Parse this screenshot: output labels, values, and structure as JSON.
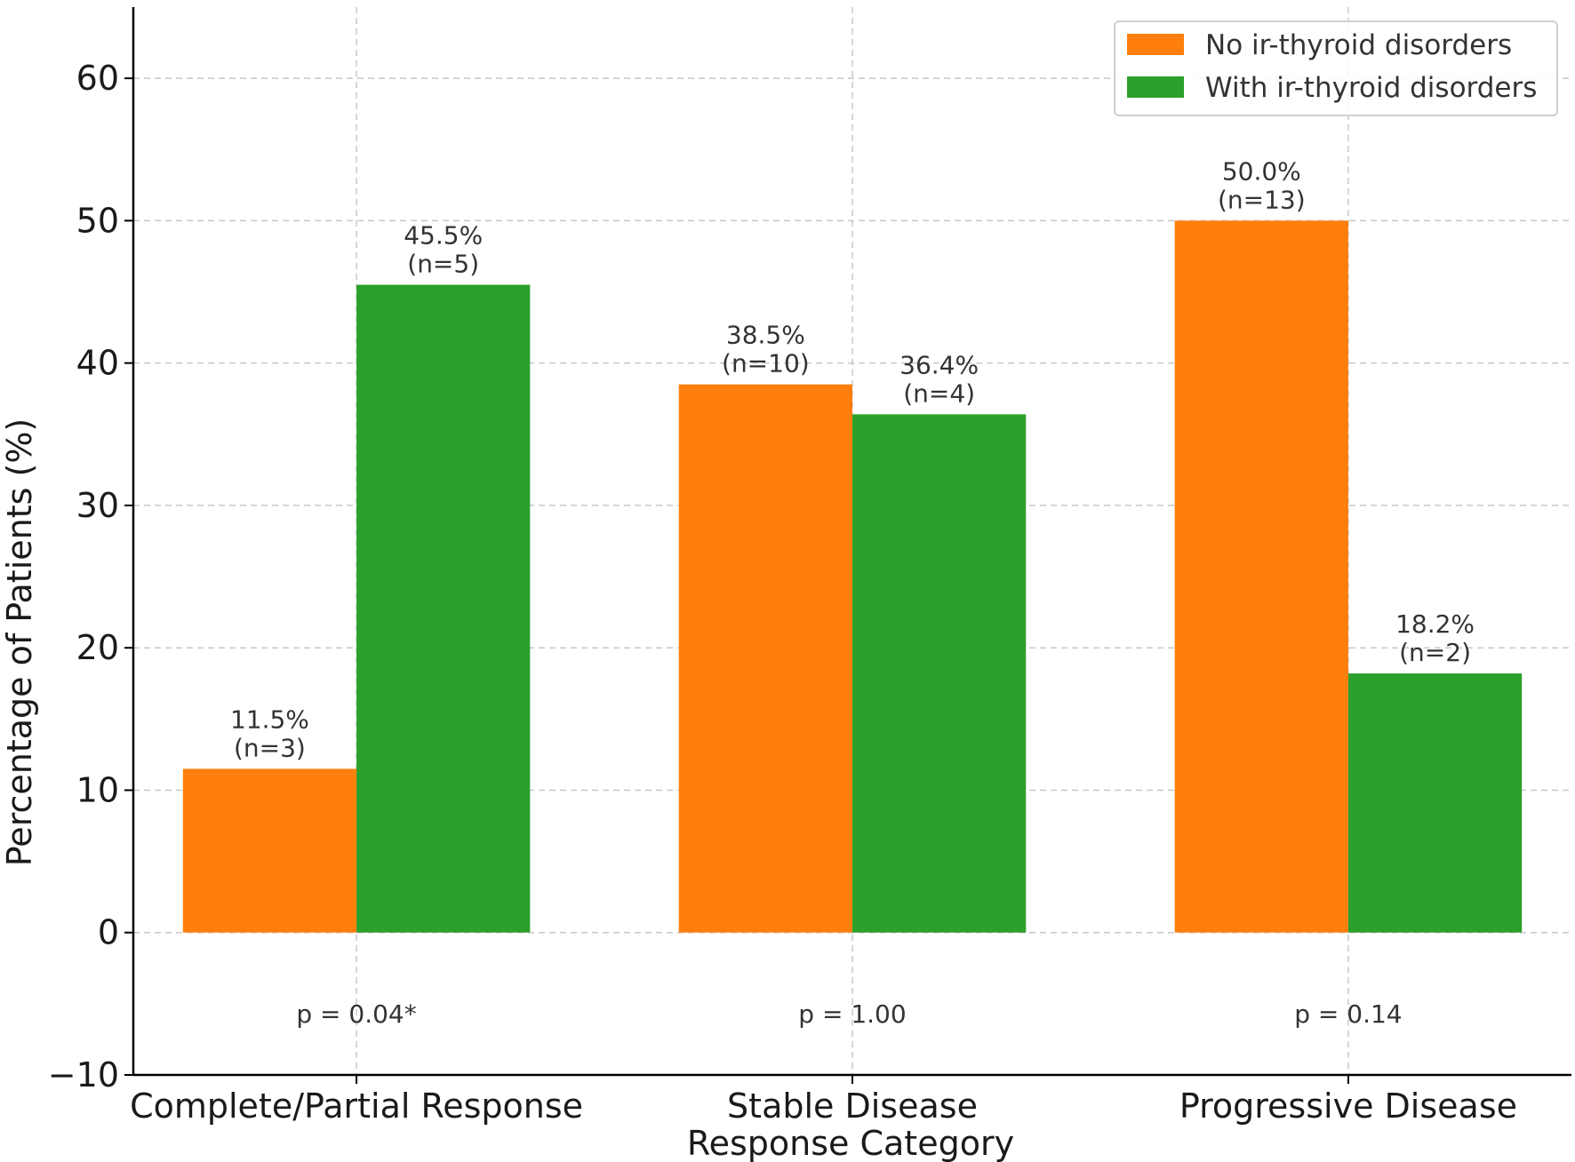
{
  "chart_data": {
    "type": "bar",
    "title": "",
    "xlabel": "Response Category",
    "ylabel": "Percentage of Patients (%)",
    "ylim": [
      -10,
      65
    ],
    "yticks": [
      -10,
      0,
      10,
      20,
      30,
      40,
      50,
      60
    ],
    "ytick_labels": [
      "−10",
      "0",
      "10",
      "20",
      "30",
      "40",
      "50",
      "60"
    ],
    "grid": true,
    "legend_position": "top-right",
    "categories": [
      "Complete/Partial Response",
      "Stable Disease",
      "Progressive Disease"
    ],
    "series": [
      {
        "name": "No ir-thyroid disorders",
        "color": "#ff7f0e",
        "values": [
          11.5,
          38.5,
          50.0
        ],
        "labels": [
          "11.5%",
          "38.5%",
          "50.0%"
        ],
        "counts": [
          "(n=3)",
          "(n=10)",
          "(n=13)"
        ]
      },
      {
        "name": "With ir-thyroid disorders",
        "color": "#2ca02c",
        "values": [
          45.5,
          36.4,
          18.2
        ],
        "labels": [
          "45.5%",
          "36.4%",
          "18.2%"
        ],
        "counts": [
          "(n=5)",
          "(n=4)",
          "(n=2)"
        ]
      }
    ],
    "annotations": [
      {
        "category": "Complete/Partial Response",
        "text": "p = 0.04*",
        "y": -5.7
      },
      {
        "category": "Stable Disease",
        "text": "p = 1.00",
        "y": -5.7
      },
      {
        "category": "Progressive Disease",
        "text": "p = 0.14",
        "y": -5.7
      }
    ]
  }
}
